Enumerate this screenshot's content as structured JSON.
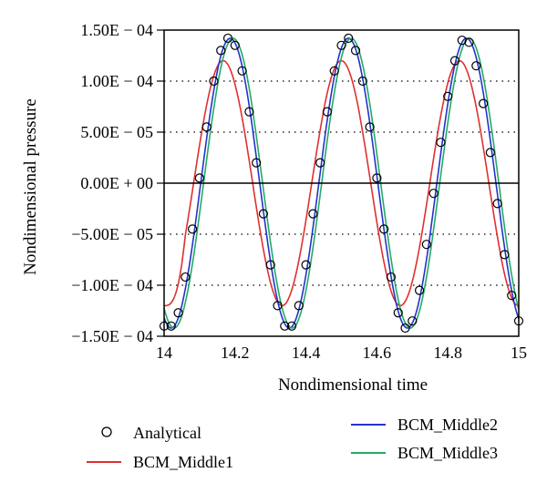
{
  "chart_data": {
    "type": "line",
    "xlabel": "Nondimensional time",
    "ylabel": "Nondimensional pressure",
    "xlim": [
      14,
      15
    ],
    "ylim": [
      -0.00015,
      0.00015
    ],
    "x_ticks": [
      "14",
      "14.2",
      "14.4",
      "14.6",
      "14.8",
      "15"
    ],
    "x_tick_values": [
      14,
      14.2,
      14.4,
      14.6,
      14.8,
      15
    ],
    "y_ticks": [
      "1.50E − 04",
      "1.00E − 04",
      "5.00E − 05",
      "0.00E + 00",
      "−5.00E − 05",
      "−1.00E − 04",
      "−1.50E − 04"
    ],
    "y_tick_values": [
      0.00015,
      0.0001,
      5e-05,
      0,
      -5e-05,
      -0.0001,
      -0.00015
    ],
    "grid": "horizontal dotted",
    "legend_position": "bottom",
    "legend": [
      "Analytical",
      "BCM_Middle1",
      "BCM_Middle2",
      "BCM_Middle3"
    ],
    "series": [
      {
        "name": "Analytical",
        "style": "markers",
        "color": "#000000",
        "x": [
          14.0,
          14.02,
          14.04,
          14.06,
          14.08,
          14.1,
          14.12,
          14.14,
          14.16,
          14.18,
          14.2,
          14.22,
          14.24,
          14.26,
          14.28,
          14.3,
          14.32,
          14.34,
          14.36,
          14.38,
          14.4,
          14.42,
          14.44,
          14.46,
          14.48,
          14.5,
          14.52,
          14.54,
          14.56,
          14.58,
          14.6,
          14.62,
          14.64,
          14.66,
          14.68,
          14.7,
          14.72,
          14.74,
          14.76,
          14.78,
          14.8,
          14.82,
          14.84,
          14.86,
          14.88,
          14.9,
          14.92,
          14.94,
          14.96,
          14.98,
          15.0
        ],
        "y": [
          -0.00014,
          -0.00014,
          -0.000127,
          -9.2e-05,
          -4.5e-05,
          5e-06,
          5.5e-05,
          0.0001,
          0.00013,
          0.000142,
          0.000135,
          0.00011,
          7e-05,
          2e-05,
          -3e-05,
          -8e-05,
          -0.00012,
          -0.00014,
          -0.00014,
          -0.00012,
          -8e-05,
          -3e-05,
          2e-05,
          7e-05,
          0.00011,
          0.000135,
          0.000142,
          0.00013,
          0.0001,
          5.5e-05,
          5e-06,
          -4.5e-05,
          -9.2e-05,
          -0.000127,
          -0.000142,
          -0.000135,
          -0.000105,
          -6e-05,
          -1e-05,
          4e-05,
          8.5e-05,
          0.00012,
          0.00014,
          0.000138,
          0.000115,
          7.8e-05,
          3e-05,
          -2e-05,
          -7e-05,
          -0.00011,
          -0.000135
        ]
      },
      {
        "name": "BCM_Middle1",
        "style": "line",
        "color": "#e03030",
        "amplitude": 0.00012,
        "period": 0.333,
        "phase": -0.02,
        "start_y": -0.00012
      },
      {
        "name": "BCM_Middle2",
        "style": "line",
        "color": "#2233cc",
        "amplitude": 0.000142,
        "period": 0.333,
        "phase": 0.0
      },
      {
        "name": "BCM_Middle3",
        "style": "line",
        "color": "#22aa66",
        "amplitude": 0.000142,
        "period": 0.333,
        "phase": 0.008
      }
    ]
  }
}
